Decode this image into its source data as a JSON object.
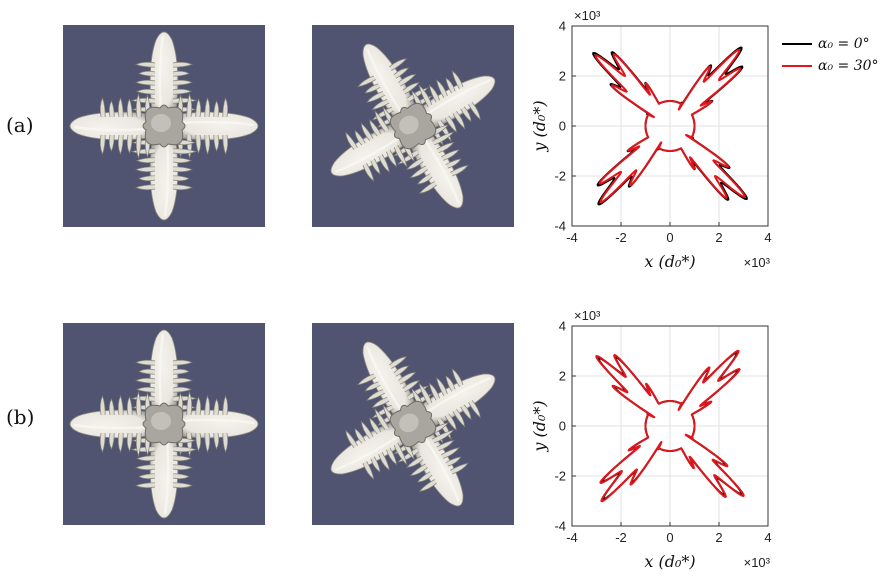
{
  "row_labels": {
    "a": "(a)",
    "b": "(b)"
  },
  "panels": {
    "background_color": "#505470",
    "crystal_color": "#e9e7df",
    "items": [
      {
        "row": "a",
        "rotation_deg": 0
      },
      {
        "row": "a",
        "rotation_deg": 30
      },
      {
        "row": "b",
        "rotation_deg": 0
      },
      {
        "row": "b",
        "rotation_deg": 30
      }
    ]
  },
  "legend": {
    "entries": [
      {
        "label": "α₀ = 0°",
        "color": "#000000"
      },
      {
        "label": "α₀ = 30°",
        "color": "#e0161c"
      }
    ]
  },
  "chart_data": [
    {
      "type": "line",
      "panel": "a",
      "xlabel": "x (d₀*)",
      "ylabel": "y (d₀*)",
      "x_multiplier": "×10³",
      "y_multiplier": "×10³",
      "xlim": [
        -4,
        4
      ],
      "ylim": [
        -4,
        4
      ],
      "xticks": [
        "-4",
        "-2",
        "0",
        "2",
        "4"
      ],
      "yticks": [
        "4",
        "2",
        "0",
        "-2",
        "-4"
      ],
      "grid": true,
      "series": [
        {
          "name": "α₀ = 0°",
          "color": "#000000",
          "tip_radius": 3.75,
          "shape_params": {
            "sharp": 6,
            "b": 0.1
          }
        },
        {
          "name": "α₀ = 30°",
          "color": "#e0161c",
          "tip_radius": 3.5,
          "shape_params": {
            "sharp": 6,
            "b": 0.1
          }
        }
      ]
    },
    {
      "type": "line",
      "panel": "b",
      "xlabel": "x (d₀*)",
      "ylabel": "y (d₀*)",
      "x_multiplier": "×10³",
      "y_multiplier": "×10³",
      "xlim": [
        -4,
        4
      ],
      "ylim": [
        -4,
        4
      ],
      "xticks": [
        "-4",
        "-2",
        "0",
        "2",
        "4"
      ],
      "yticks": [
        "4",
        "2",
        "0",
        "-2",
        "-4"
      ],
      "grid": true,
      "series": [
        {
          "name": "α₀ = 0°",
          "color": "#000000",
          "tip_radius": 3.45,
          "shape_params": {
            "sharp": 6,
            "b": 0.1
          }
        },
        {
          "name": "α₀ = 30°",
          "color": "#e0161c",
          "tip_radius": 3.45,
          "shape_params": {
            "sharp": 6,
            "b": 0.1
          }
        }
      ]
    }
  ]
}
